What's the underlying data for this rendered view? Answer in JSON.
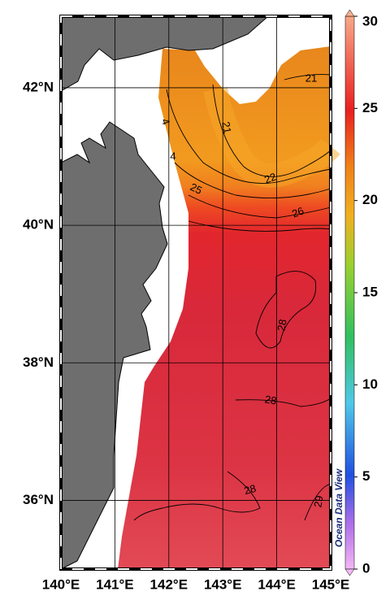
{
  "map": {
    "xlim": [
      140,
      145
    ],
    "ylim": [
      35,
      43.04
    ],
    "xticks": [
      {
        "value": 140,
        "label": "140°E"
      },
      {
        "value": 141,
        "label": "141°E"
      },
      {
        "value": 142,
        "label": "142°E"
      },
      {
        "value": 143,
        "label": "143°E"
      },
      {
        "value": 144,
        "label": "144°E"
      },
      {
        "value": 145,
        "label": "145°E"
      }
    ],
    "yticks": [
      {
        "value": 36,
        "label": "36°N"
      },
      {
        "value": 38,
        "label": "38°N"
      },
      {
        "value": 40,
        "label": "40°N"
      },
      {
        "value": 42,
        "label": "42°N"
      }
    ],
    "colorbar": {
      "lim": [
        0,
        30
      ],
      "ticks": [
        0,
        5,
        10,
        15,
        20,
        25,
        30
      ]
    },
    "contour_labels": [
      "21",
      "21",
      "4",
      "4",
      "22",
      "25",
      "26",
      "28",
      "28",
      "28",
      "29"
    ],
    "watermark": "Ocean Data View"
  }
}
